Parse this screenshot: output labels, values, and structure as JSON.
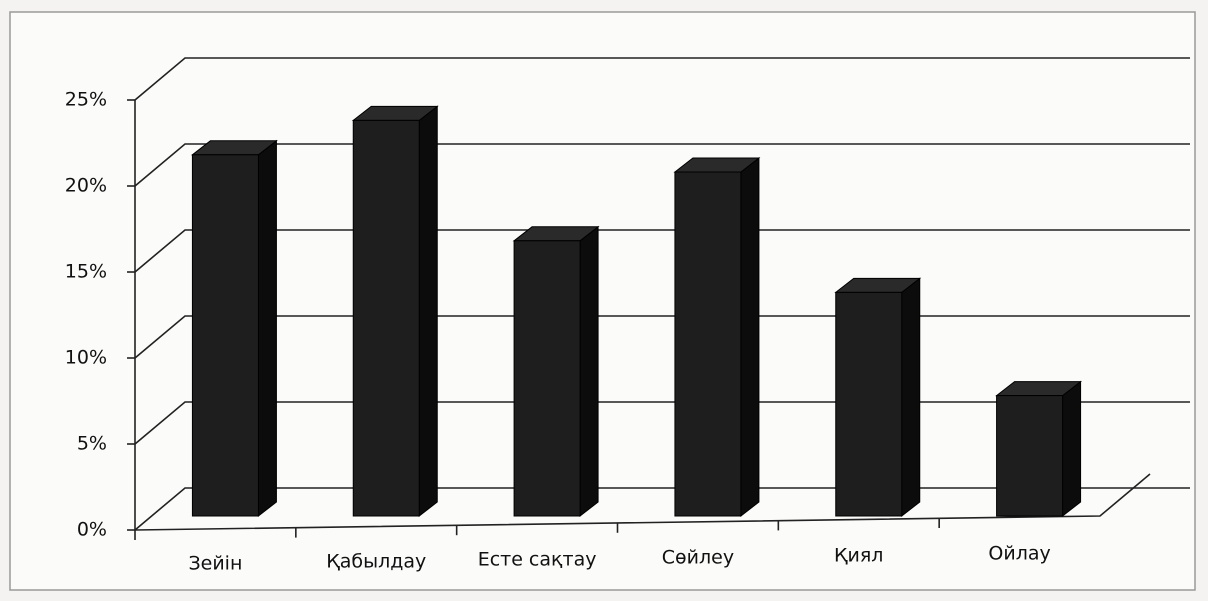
{
  "chart_data": {
    "type": "bar3d",
    "categories": [
      "Зейін",
      "Қабылдау",
      "Есте сақтау",
      "Сөйлеу",
      "Қиял",
      "Ойлау"
    ],
    "values": [
      21,
      23,
      16,
      20,
      13,
      7
    ],
    "color": "#1e1e1e",
    "ylim": [
      0,
      25
    ],
    "yticks": [
      {
        "value": 0,
        "label": "0%"
      },
      {
        "value": 5,
        "label": "5%"
      },
      {
        "value": 10,
        "label": "10%"
      },
      {
        "value": 15,
        "label": "15%"
      },
      {
        "value": 20,
        "label": "20%"
      },
      {
        "value": 25,
        "label": "25%"
      }
    ],
    "grid": true
  }
}
